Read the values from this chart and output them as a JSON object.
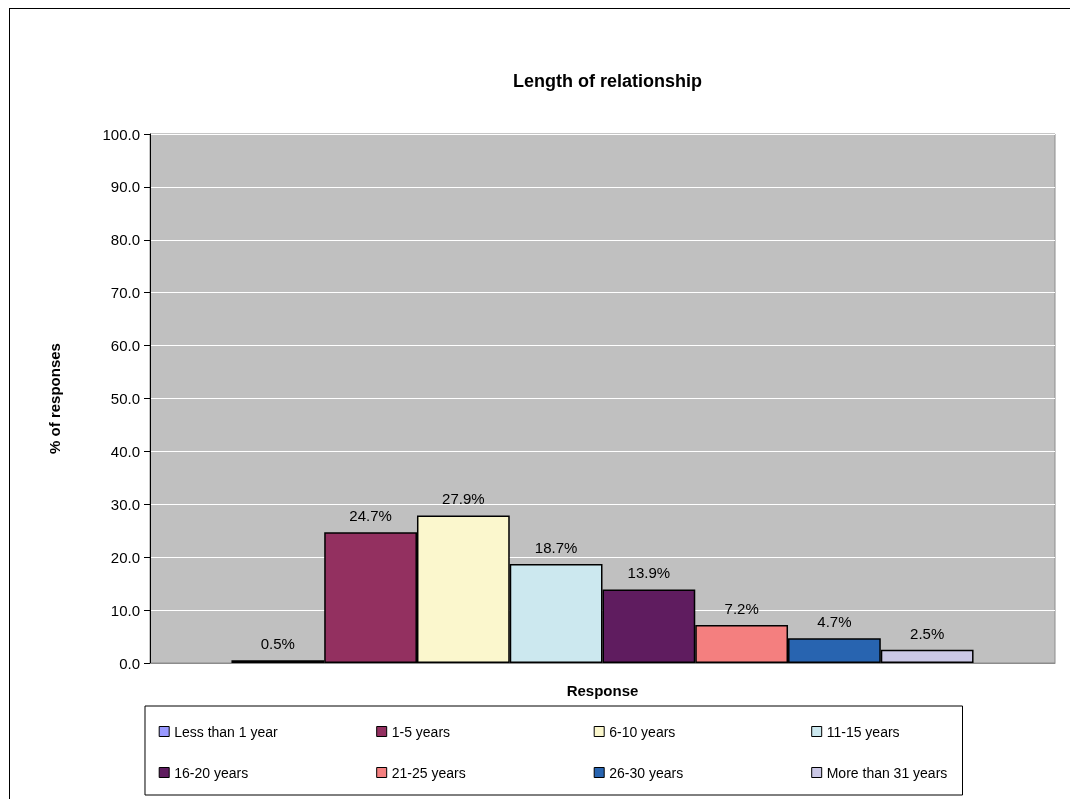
{
  "chart_data": {
    "type": "bar",
    "title": "Length of relationship",
    "xlabel": "Response",
    "ylabel": "% of responses",
    "categories": [
      null
    ],
    "series": [
      {
        "name": "Less than 1 year",
        "color": "#9999ff",
        "values": [
          0.5
        ],
        "value_labels": [
          "0.5%"
        ]
      },
      {
        "name": "1-5 years",
        "color": "#933060",
        "values": [
          24.7
        ],
        "value_labels": [
          "24.7%"
        ]
      },
      {
        "name": "6-10 years",
        "color": "#fbf7cd",
        "values": [
          27.9
        ],
        "value_labels": [
          "27.9%"
        ]
      },
      {
        "name": "11-15 years",
        "color": "#cce8ef",
        "values": [
          18.7
        ],
        "value_labels": [
          "18.7%"
        ]
      },
      {
        "name": "16-20 years",
        "color": "#5f1c5f",
        "values": [
          13.9
        ],
        "value_labels": [
          "13.9%"
        ]
      },
      {
        "name": "21-25 years",
        "color": "#f47f7f",
        "values": [
          7.2
        ],
        "value_labels": [
          "7.2%"
        ]
      },
      {
        "name": "26-30 years",
        "color": "#2864b0",
        "values": [
          4.7
        ],
        "value_labels": [
          "4.7%"
        ]
      },
      {
        "name": "More than 31 years",
        "color": "#cbc8e6",
        "values": [
          2.5
        ],
        "value_labels": [
          "2.5%"
        ]
      }
    ],
    "ylim": [
      0,
      100
    ],
    "yticks": [
      {
        "value": 0,
        "label": "0.0"
      },
      {
        "value": 10,
        "label": "10.0"
      },
      {
        "value": 20,
        "label": "20.0"
      },
      {
        "value": 30,
        "label": "30.0"
      },
      {
        "value": 40,
        "label": "40.0"
      },
      {
        "value": 50,
        "label": "50.0"
      },
      {
        "value": 60,
        "label": "60.0"
      },
      {
        "value": 70,
        "label": "70.0"
      },
      {
        "value": 80,
        "label": "80.0"
      },
      {
        "value": 90,
        "label": "90.0"
      },
      {
        "value": 100,
        "label": "100.0"
      }
    ],
    "grid": "y",
    "legend": "bottom"
  }
}
